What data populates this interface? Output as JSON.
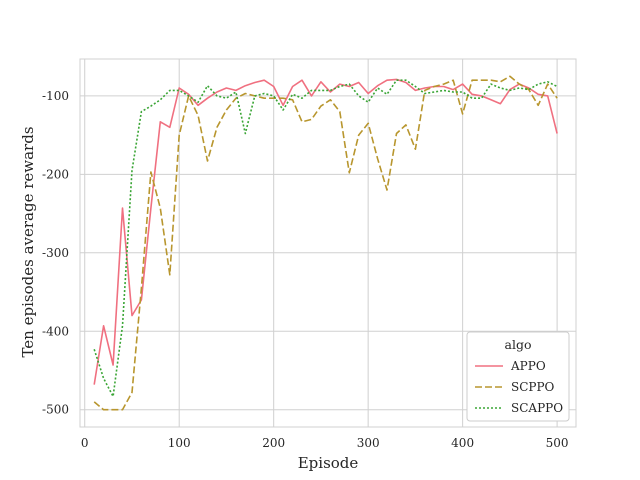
{
  "chart_data": {
    "type": "line",
    "xlabel": "Episode",
    "ylabel": "Ten episodes average rewards",
    "xlim": [
      -5,
      520
    ],
    "ylim": [
      -522,
      -53
    ],
    "xticks": [
      0,
      100,
      200,
      300,
      400,
      500
    ],
    "yticks": [
      -500,
      -400,
      -300,
      -200,
      -100
    ],
    "grid": true,
    "legend": {
      "title": "algo",
      "placement": "lower-right"
    },
    "x": [
      10,
      20,
      30,
      40,
      50,
      60,
      70,
      80,
      90,
      100,
      110,
      120,
      130,
      140,
      150,
      160,
      170,
      180,
      190,
      200,
      210,
      220,
      230,
      240,
      250,
      260,
      270,
      280,
      290,
      300,
      310,
      320,
      330,
      340,
      350,
      360,
      370,
      380,
      390,
      400,
      410,
      420,
      430,
      440,
      450,
      460,
      470,
      480,
      490,
      500
    ],
    "series": [
      {
        "name": "APPO",
        "color": "#f07080",
        "dash": "solid",
        "values": [
          -468,
          -393,
          -443,
          -243,
          -380,
          -360,
          -243,
          -133,
          -140,
          -90,
          -98,
          -112,
          -103,
          -95,
          -90,
          -93,
          -87,
          -83,
          -80,
          -88,
          -112,
          -88,
          -80,
          -100,
          -82,
          -95,
          -85,
          -88,
          -83,
          -97,
          -87,
          -80,
          -79,
          -83,
          -93,
          -90,
          -88,
          -88,
          -92,
          -85,
          -98,
          -100,
          -105,
          -110,
          -92,
          -85,
          -90,
          -98,
          -100,
          -148
        ]
      },
      {
        "name": "SCPPO",
        "color": "#b8962e",
        "dash": "dashed",
        "values": [
          -490,
          -500,
          -500,
          -500,
          -478,
          -345,
          -197,
          -243,
          -328,
          -150,
          -100,
          -125,
          -183,
          -140,
          -118,
          -103,
          -97,
          -100,
          -103,
          -103,
          -103,
          -105,
          -133,
          -130,
          -113,
          -105,
          -120,
          -198,
          -150,
          -135,
          -180,
          -220,
          -148,
          -137,
          -168,
          -93,
          -88,
          -85,
          -80,
          -123,
          -80,
          -80,
          -80,
          -82,
          -75,
          -85,
          -92,
          -112,
          -85,
          -103
        ]
      },
      {
        "name": "SCAPPO",
        "color": "#3aa535",
        "dash": "dotted",
        "values": [
          -423,
          -460,
          -483,
          -393,
          -195,
          -120,
          -113,
          -105,
          -93,
          -93,
          -100,
          -108,
          -87,
          -100,
          -103,
          -95,
          -148,
          -100,
          -97,
          -100,
          -118,
          -98,
          -103,
          -93,
          -93,
          -93,
          -88,
          -85,
          -100,
          -108,
          -90,
          -98,
          -80,
          -80,
          -88,
          -97,
          -95,
          -93,
          -95,
          -95,
          -103,
          -103,
          -85,
          -90,
          -93,
          -90,
          -92,
          -85,
          -82,
          -88
        ]
      }
    ]
  }
}
